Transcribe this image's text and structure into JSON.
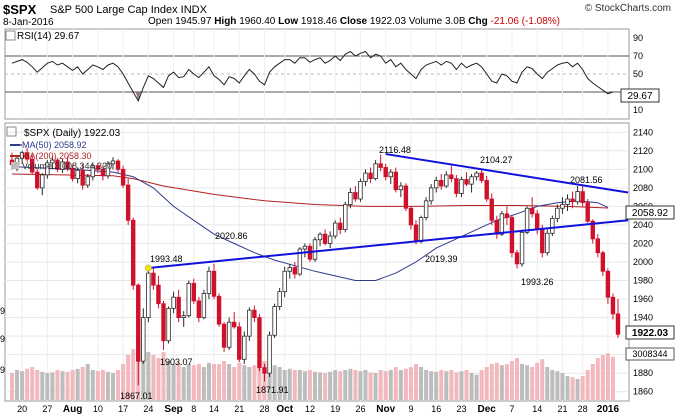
{
  "header": {
    "symbol": "$SPX",
    "name": "S&P 500 Large Cap Index  INDX",
    "brand": "© StockCharts.com",
    "date": "8-Jan-2016",
    "open_label": "Open",
    "open": "1945.97",
    "high_label": "High",
    "high": "1960.40",
    "low_label": "Low",
    "low": "1918.46",
    "close_label": "Close",
    "close": "1922.03",
    "volume_label": "Volume",
    "volume": "3.0B",
    "chg_label": "Chg",
    "chg": "-21.06 (-1.08%)"
  },
  "rsi_panel": {
    "legend": "RSI(14) 29.67",
    "value_label": "29.67",
    "ticks": [
      "90",
      "70",
      "50",
      "30",
      "10"
    ]
  },
  "price_panel": {
    "legend_main": "$SPX (Daily) 1922.03",
    "legend_ma50": "MA(50) 2058.92",
    "legend_ma200": "MA(200) 2058.30",
    "legend_volume": "Volume 3,008,344,320",
    "ma_value_label": "2058.92",
    "close_value_label": "1922.03",
    "volume_value_label": "3008344",
    "left_tick_fragments": [
      "9",
      "9",
      "9"
    ],
    "annotations": [
      "2116.48",
      "2104.27",
      "2081.56",
      "2020.86",
      "1993.48",
      "2019.39",
      "1993.26",
      "1903.07",
      "1871.91",
      "1867.01"
    ]
  },
  "colors": {
    "up": "#2a2a2a",
    "down": "#d0112b",
    "ma50": "#2f3a8f",
    "ma200": "#b22222",
    "trend": "#1111dd",
    "volume_up": "#bdbdbd",
    "volume_down": "#f2b8bd",
    "rsi_down_fill": "#8b6464"
  },
  "chart_data": {
    "type": "candlestick",
    "y_axis_ticks": [
      2140,
      2120,
      2100,
      2080,
      2060,
      2040,
      2020,
      2000,
      1980,
      1960,
      1940,
      1920,
      1900,
      1880,
      1860
    ],
    "ylim": [
      1850,
      2150
    ],
    "x_tick_labels": [
      "20",
      "27",
      "Aug",
      "10",
      "17",
      "24",
      "Sep",
      "8",
      "14",
      "21",
      "28",
      "Oct",
      "12",
      "19",
      "26",
      "Nov",
      "9",
      "16",
      "23",
      "Dec",
      "7",
      "14",
      "21",
      "28",
      "2016"
    ],
    "x_tick_bar_index": [
      2,
      7,
      12,
      17,
      22,
      27,
      32,
      36,
      40,
      45,
      50,
      54,
      59,
      64,
      69,
      74,
      79,
      84,
      89,
      94,
      99,
      104,
      109,
      113,
      118
    ],
    "bars_ohlc": [
      [
        2110,
        2118,
        2100,
        2105
      ],
      [
        2105,
        2115,
        2098,
        2112
      ],
      [
        2112,
        2120,
        2106,
        2118
      ],
      [
        2118,
        2123,
        2108,
        2111
      ],
      [
        2111,
        2116,
        2095,
        2097
      ],
      [
        2097,
        2100,
        2078,
        2080
      ],
      [
        2080,
        2096,
        2072,
        2094
      ],
      [
        2094,
        2110,
        2090,
        2107
      ],
      [
        2107,
        2114,
        2100,
        2110
      ],
      [
        2110,
        2112,
        2097,
        2100
      ],
      [
        2100,
        2111,
        2096,
        2108
      ],
      [
        2108,
        2114,
        2098,
        2101
      ],
      [
        2101,
        2105,
        2087,
        2090
      ],
      [
        2090,
        2102,
        2085,
        2099
      ],
      [
        2099,
        2106,
        2078,
        2083
      ],
      [
        2083,
        2095,
        2080,
        2092
      ],
      [
        2092,
        2106,
        2088,
        2104
      ],
      [
        2104,
        2107,
        2096,
        2100
      ],
      [
        2100,
        2105,
        2088,
        2093
      ],
      [
        2093,
        2109,
        2090,
        2106
      ],
      [
        2106,
        2113,
        2100,
        2109
      ],
      [
        2109,
        2111,
        2096,
        2100
      ],
      [
        2100,
        2104,
        2080,
        2083
      ],
      [
        2083,
        2090,
        2040,
        2045
      ],
      [
        2045,
        2048,
        1970,
        1975
      ],
      [
        1975,
        1977,
        1867,
        1893
      ],
      [
        1893,
        1950,
        1890,
        1940
      ],
      [
        1940,
        1992,
        1935,
        1988
      ],
      [
        1988,
        1993,
        1970,
        1975
      ],
      [
        1975,
        1985,
        1950,
        1955
      ],
      [
        1955,
        1958,
        1905,
        1915
      ],
      [
        1915,
        1952,
        1912,
        1950
      ],
      [
        1950,
        1968,
        1945,
        1962
      ],
      [
        1962,
        1970,
        1935,
        1940
      ],
      [
        1940,
        1947,
        1930,
        1942
      ],
      [
        1942,
        1980,
        1940,
        1977
      ],
      [
        1977,
        1982,
        1955,
        1958
      ],
      [
        1958,
        1962,
        1935,
        1940
      ],
      [
        1940,
        1970,
        1938,
        1966
      ],
      [
        1966,
        1995,
        1960,
        1990
      ],
      [
        1990,
        1998,
        1960,
        1963
      ],
      [
        1963,
        1966,
        1930,
        1933
      ],
      [
        1933,
        1935,
        1903,
        1908
      ],
      [
        1908,
        1940,
        1905,
        1935
      ],
      [
        1935,
        1946,
        1928,
        1930
      ],
      [
        1930,
        1935,
        1892,
        1895
      ],
      [
        1895,
        1925,
        1890,
        1920
      ],
      [
        1920,
        1951,
        1915,
        1948
      ],
      [
        1948,
        1953,
        1935,
        1940
      ],
      [
        1940,
        1944,
        1882,
        1886
      ],
      [
        1886,
        1890,
        1871,
        1880
      ],
      [
        1880,
        1925,
        1876,
        1921
      ],
      [
        1921,
        1955,
        1918,
        1952
      ],
      [
        1952,
        1972,
        1948,
        1968
      ],
      [
        1968,
        1995,
        1962,
        1990
      ],
      [
        1990,
        1998,
        1982,
        1994
      ],
      [
        1994,
        2000,
        1982,
        1987
      ],
      [
        1987,
        2016,
        1985,
        2014
      ],
      [
        2014,
        2020,
        2005,
        2017
      ],
      [
        2017,
        2020,
        2000,
        2003
      ],
      [
        2003,
        2027,
        2000,
        2024
      ],
      [
        2024,
        2032,
        2017,
        2030
      ],
      [
        2030,
        2035,
        2018,
        2020
      ],
      [
        2020,
        2033,
        2015,
        2028
      ],
      [
        2028,
        2045,
        2025,
        2042
      ],
      [
        2042,
        2048,
        2030,
        2035
      ],
      [
        2035,
        2065,
        2032,
        2062
      ],
      [
        2062,
        2080,
        2058,
        2075
      ],
      [
        2075,
        2082,
        2065,
        2068
      ],
      [
        2068,
        2090,
        2065,
        2087
      ],
      [
        2087,
        2100,
        2082,
        2096
      ],
      [
        2096,
        2102,
        2085,
        2090
      ],
      [
        2090,
        2110,
        2088,
        2106
      ],
      [
        2106,
        2116,
        2098,
        2102
      ],
      [
        2102,
        2106,
        2088,
        2092
      ],
      [
        2092,
        2100,
        2084,
        2097
      ],
      [
        2097,
        2102,
        2075,
        2078
      ],
      [
        2078,
        2086,
        2070,
        2082
      ],
      [
        2082,
        2085,
        2055,
        2058
      ],
      [
        2058,
        2060,
        2035,
        2040
      ],
      [
        2040,
        2045,
        2019,
        2022
      ],
      [
        2022,
        2050,
        2020,
        2048
      ],
      [
        2048,
        2070,
        2045,
        2066
      ],
      [
        2066,
        2084,
        2062,
        2080
      ],
      [
        2080,
        2092,
        2075,
        2088
      ],
      [
        2088,
        2095,
        2078,
        2082
      ],
      [
        2082,
        2098,
        2080,
        2094
      ],
      [
        2094,
        2104,
        2086,
        2090
      ],
      [
        2090,
        2094,
        2070,
        2074
      ],
      [
        2074,
        2092,
        2070,
        2089
      ],
      [
        2089,
        2097,
        2082,
        2084
      ],
      [
        2084,
        2095,
        2075,
        2092
      ],
      [
        2092,
        2098,
        2088,
        2096
      ],
      [
        2096,
        2101,
        2085,
        2088
      ],
      [
        2088,
        2093,
        2065,
        2068
      ],
      [
        2068,
        2074,
        2040,
        2045
      ],
      [
        2045,
        2050,
        2025,
        2030
      ],
      [
        2030,
        2055,
        2028,
        2052
      ],
      [
        2052,
        2060,
        2040,
        2048
      ],
      [
        2048,
        2050,
        2005,
        2010
      ],
      [
        2010,
        2013,
        1993,
        1998
      ],
      [
        1998,
        2035,
        1995,
        2032
      ],
      [
        2032,
        2060,
        2030,
        2058
      ],
      [
        2058,
        2070,
        2048,
        2052
      ],
      [
        2052,
        2056,
        2030,
        2035
      ],
      [
        2035,
        2040,
        2005,
        2010
      ],
      [
        2010,
        2035,
        2007,
        2031
      ],
      [
        2031,
        2050,
        2028,
        2047
      ],
      [
        2047,
        2062,
        2043,
        2058
      ],
      [
        2058,
        2070,
        2052,
        2062
      ],
      [
        2062,
        2073,
        2055,
        2068
      ],
      [
        2068,
        2076,
        2058,
        2065
      ],
      [
        2065,
        2082,
        2062,
        2076
      ],
      [
        2076,
        2082,
        2060,
        2064
      ],
      [
        2064,
        2068,
        2042,
        2044
      ],
      [
        2044,
        2046,
        2020,
        2025
      ],
      [
        2025,
        2030,
        2005,
        2010
      ],
      [
        2010,
        2012,
        1985,
        1990
      ],
      [
        1990,
        1993,
        1955,
        1962
      ],
      [
        1962,
        1966,
        1938,
        1944
      ],
      [
        1944,
        1960,
        1918,
        1922
      ]
    ],
    "ma50_points": [
      [
        0,
        2103
      ],
      [
        12,
        2100
      ],
      [
        20,
        2097
      ],
      [
        24,
        2092
      ],
      [
        28,
        2080
      ],
      [
        32,
        2060
      ],
      [
        36,
        2045
      ],
      [
        40,
        2030
      ],
      [
        44,
        2020
      ],
      [
        48,
        2010
      ],
      [
        52,
        2002
      ],
      [
        56,
        1996
      ],
      [
        60,
        1990
      ],
      [
        64,
        1985
      ],
      [
        68,
        1980
      ],
      [
        72,
        1980
      ],
      [
        76,
        1988
      ],
      [
        80,
        2000
      ],
      [
        84,
        2015
      ],
      [
        88,
        2025
      ],
      [
        92,
        2035
      ],
      [
        96,
        2045
      ],
      [
        100,
        2052
      ],
      [
        104,
        2060
      ],
      [
        108,
        2064
      ],
      [
        112,
        2066
      ],
      [
        116,
        2064
      ],
      [
        118,
        2058.92
      ]
    ],
    "ma200_points": [
      [
        0,
        2095
      ],
      [
        20,
        2093
      ],
      [
        24,
        2090
      ],
      [
        30,
        2082
      ],
      [
        40,
        2073
      ],
      [
        50,
        2066
      ],
      [
        60,
        2062
      ],
      [
        70,
        2060
      ],
      [
        80,
        2060
      ],
      [
        90,
        2061
      ],
      [
        100,
        2061
      ],
      [
        110,
        2060
      ],
      [
        118,
        2058.3
      ]
    ],
    "trendlines": [
      {
        "from": [
          27,
          1993.48
        ],
        "to": [
          122,
          2045
        ]
      },
      {
        "from": [
          74,
          2116.48
        ],
        "to": [
          122,
          2075
        ]
      }
    ],
    "volume_fraction": [
      0.45,
      0.5,
      0.48,
      0.52,
      0.55,
      0.5,
      0.47,
      0.45,
      0.46,
      0.5,
      0.48,
      0.47,
      0.5,
      0.52,
      0.55,
      0.6,
      0.5,
      0.48,
      0.5,
      0.47,
      0.45,
      0.5,
      0.6,
      0.75,
      0.85,
      1.0,
      0.9,
      0.8,
      0.75,
      0.7,
      0.8,
      0.65,
      0.6,
      0.62,
      0.55,
      0.6,
      0.58,
      0.6,
      0.55,
      0.62,
      0.6,
      0.6,
      0.65,
      0.6,
      0.55,
      0.62,
      0.58,
      0.55,
      0.58,
      0.62,
      0.65,
      0.6,
      0.58,
      0.55,
      0.5,
      0.52,
      0.5,
      0.5,
      0.48,
      0.5,
      0.47,
      0.46,
      0.45,
      0.47,
      0.5,
      0.48,
      0.5,
      0.52,
      0.5,
      0.48,
      0.5,
      0.46,
      0.45,
      0.5,
      0.48,
      0.5,
      0.55,
      0.5,
      0.52,
      0.55,
      0.6,
      0.55,
      0.5,
      0.48,
      0.47,
      0.5,
      0.48,
      0.5,
      0.46,
      0.48,
      0.5,
      0.45,
      0.42,
      0.5,
      0.55,
      0.6,
      0.62,
      0.58,
      0.6,
      0.65,
      0.7,
      0.6,
      0.58,
      0.55,
      0.62,
      0.68,
      0.55,
      0.5,
      0.48,
      0.45,
      0.4,
      0.38,
      0.35,
      0.4,
      0.5,
      0.6,
      0.7,
      0.75,
      0.78,
      0.72
    ],
    "rsi_values": [
      62,
      64,
      66,
      63,
      58,
      52,
      57,
      62,
      64,
      60,
      62,
      58,
      54,
      58,
      50,
      55,
      60,
      58,
      55,
      60,
      62,
      58,
      50,
      40,
      30,
      20,
      35,
      48,
      45,
      40,
      35,
      48,
      52,
      46,
      47,
      55,
      50,
      46,
      52,
      58,
      48,
      44,
      38,
      47,
      45,
      40,
      48,
      55,
      50,
      42,
      38,
      52,
      58,
      62,
      66,
      66,
      62,
      68,
      68,
      63,
      66,
      68,
      62,
      65,
      70,
      65,
      72,
      75,
      70,
      73,
      75,
      68,
      72,
      70,
      62,
      66,
      58,
      62,
      55,
      50,
      45,
      55,
      60,
      62,
      64,
      60,
      64,
      62,
      55,
      62,
      57,
      60,
      62,
      58,
      50,
      42,
      40,
      50,
      48,
      42,
      40,
      52,
      58,
      56,
      50,
      45,
      52,
      56,
      60,
      62,
      63,
      58,
      62,
      55,
      45,
      40,
      36,
      32,
      28,
      30
    ]
  }
}
